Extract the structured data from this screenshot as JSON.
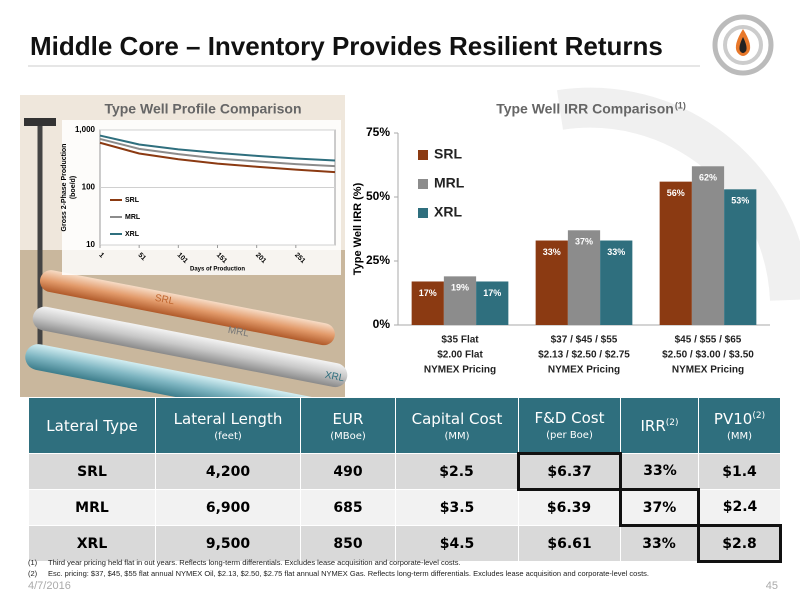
{
  "title": "Middle Core – Inventory Provides Resilient Returns",
  "chart_data": [
    {
      "type": "line",
      "title": "Type Well Profile Comparison",
      "xlabel": "Days of Production",
      "ylabel": [
        "Gross 2-Phase Production",
        "(boe/d)"
      ],
      "x": [
        1,
        51,
        101,
        151,
        201,
        251,
        301
      ],
      "series": [
        {
          "name": "SRL",
          "color": "#8b3a12",
          "values": [
            600,
            390,
            310,
            260,
            230,
            205,
            185
          ]
        },
        {
          "name": "MRL",
          "color": "#8c8c8c",
          "values": [
            700,
            470,
            380,
            320,
            285,
            255,
            235
          ]
        },
        {
          "name": "XRL",
          "color": "#2f6f7e",
          "values": [
            800,
            560,
            460,
            400,
            355,
            320,
            295
          ]
        }
      ],
      "xlim": [
        1,
        301
      ],
      "xticks": [
        1,
        51,
        101,
        151,
        201,
        251
      ],
      "ylim": [
        10,
        1000
      ],
      "yticks": [
        10,
        100,
        {
          "value": 1000,
          "label": "1,000"
        }
      ],
      "log_y": true,
      "grid": true
    },
    {
      "type": "bar",
      "title": "Type Well IRR Comparison",
      "title_note": "(1)",
      "ylabel": "Type Well IRR (%)",
      "categories": [
        [
          "$35 Flat",
          "$2.00 Flat",
          "NYMEX Pricing"
        ],
        [
          "$37 / $45 / $55",
          "$2.13 / $2.50 / $2.75",
          "NYMEX Pricing"
        ],
        [
          "$45 / $55 / $65",
          "$2.50 / $3.00 / $3.50",
          "NYMEX Pricing"
        ]
      ],
      "series": [
        {
          "name": "SRL",
          "color": "#8b3a12",
          "values": [
            17,
            33,
            56
          ],
          "value_labels": [
            "17%",
            "33%",
            "56%"
          ]
        },
        {
          "name": "MRL",
          "color": "#8c8c8c",
          "values": [
            19,
            37,
            62
          ],
          "value_labels": [
            "19%",
            "37%",
            "62%"
          ]
        },
        {
          "name": "XRL",
          "color": "#2f6f7e",
          "values": [
            17,
            33,
            53
          ],
          "value_labels": [
            "17%",
            "33%",
            "53%"
          ]
        }
      ],
      "ylim": [
        0,
        75
      ],
      "yticks": [
        {
          "value": 0,
          "label": "0%"
        },
        {
          "value": 25,
          "label": "25%"
        },
        {
          "value": 50,
          "label": "50%"
        },
        {
          "value": 75,
          "label": "75%"
        }
      ],
      "legend": "top-left",
      "grid": false
    }
  ],
  "illustration": {
    "labels": [
      "SRL",
      "MRL",
      "XRL"
    ]
  },
  "table": {
    "header": [
      {
        "label": "Lateral Type"
      },
      {
        "label": "Lateral Length",
        "sub": "(feet)"
      },
      {
        "label": "EUR",
        "sub": "(MBoe)"
      },
      {
        "label": "Capital Cost",
        "sub": "(MM)"
      },
      {
        "label": "F&D Cost",
        "sub": "(per Boe)"
      },
      {
        "label": "IRR",
        "note": "(2)"
      },
      {
        "label": "PV10",
        "note": "(2)",
        "sub": "(MM)"
      }
    ],
    "rows": [
      [
        "SRL",
        "4,200",
        "490",
        "$2.5",
        "$6.37",
        "33%",
        "$1.4"
      ],
      [
        "MRL",
        "6,900",
        "685",
        "$3.5",
        "$6.39",
        "37%",
        "$2.4"
      ],
      [
        "XRL",
        "9,500",
        "850",
        "$4.5",
        "$6.61",
        "33%",
        "$2.8"
      ]
    ]
  },
  "footnotes": [
    {
      "marker": "(1)",
      "text": "Third year pricing held flat in out years.  Reflects long-term differentials.  Excludes lease acquisition and corporate-level costs."
    },
    {
      "marker": "(2)",
      "text": "Esc. pricing:  $37, $45, $55 flat annual NYMEX Oil, $2.13, $2.50, $2.75 flat annual NYMEX Gas.  Reflects long-term differentials.  Excludes lease acquisition and corporate-level costs."
    }
  ],
  "footer": {
    "date": "4/7/2016",
    "page": "45"
  }
}
